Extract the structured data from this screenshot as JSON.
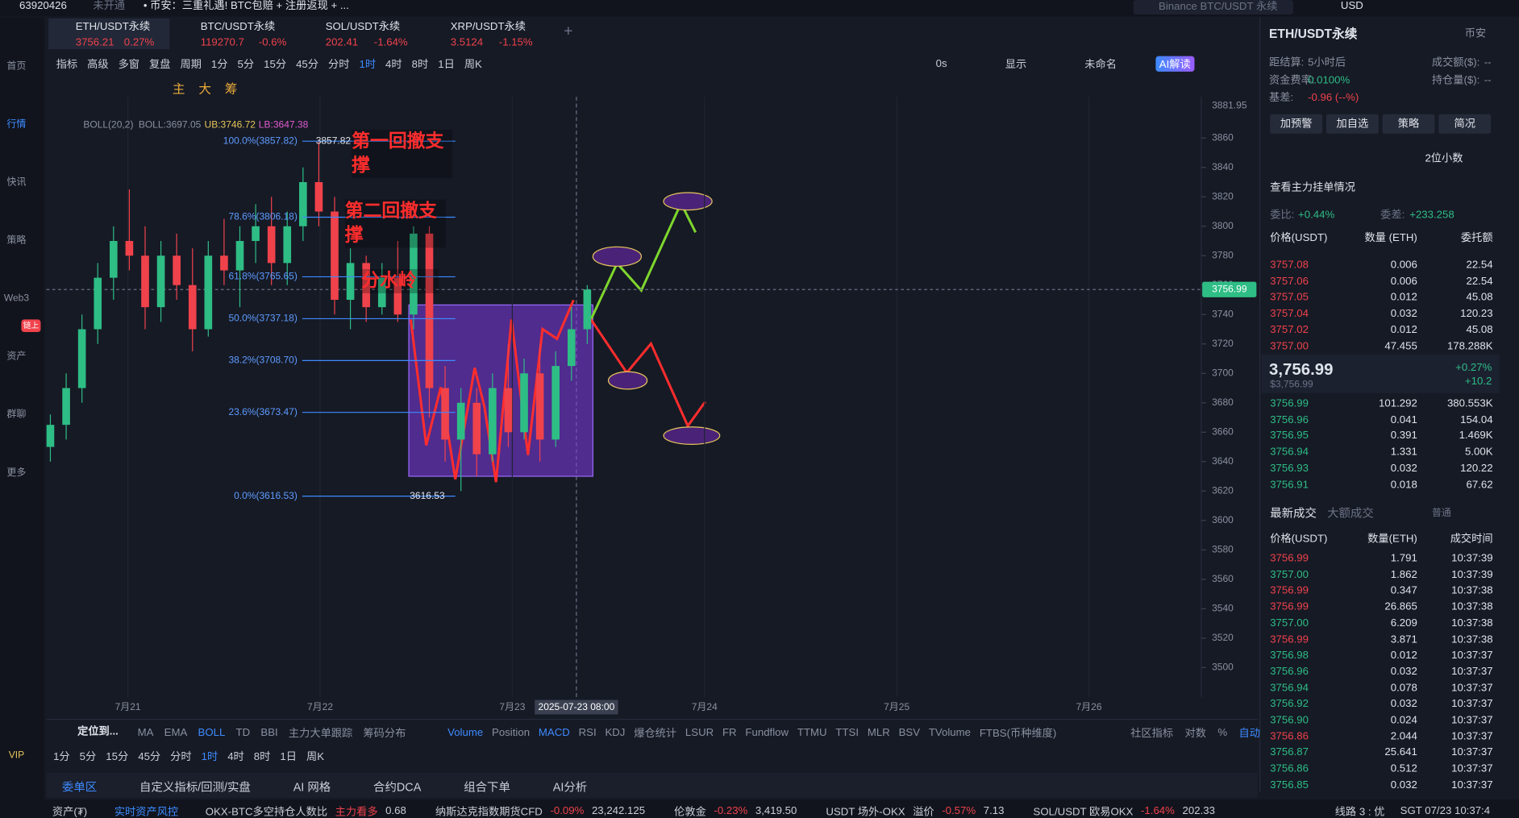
{
  "topbar": {
    "account": "63920426",
    "status": "未开通",
    "news": "• 币安：三重礼遇! BTC包赔 + 注册返现 + ...",
    "search": "Binance BTC/USDT 永续",
    "currency": "USD"
  },
  "tabs": [
    {
      "name": "ETH/USDT永续",
      "price": "3756.21",
      "change": "0.27%"
    },
    {
      "name": "BTC/USDT永续",
      "price": "119270.7",
      "change": "-0.6%"
    },
    {
      "name": "SOL/USDT永续",
      "price": "202.41",
      "change": "-1.64%"
    },
    {
      "name": "XRP/USDT永续",
      "price": "3.5124",
      "change": "-1.15%"
    }
  ],
  "sidebar": {
    "items": [
      "首页",
      "行情",
      "快讯",
      "策略",
      "Web3",
      "资产",
      "群聊",
      "更多"
    ],
    "badge": "链上",
    "vip": "VIP",
    "active": 1
  },
  "toolbar": {
    "items": [
      "指标",
      "高级",
      "多窗",
      "复盘",
      "周期",
      "1分",
      "5分",
      "15分",
      "45分",
      "分时",
      "1时",
      "4时",
      "8时",
      "1日",
      "周K"
    ],
    "active": 10,
    "right": [
      "0s",
      "显示",
      "未命名",
      "AI解读"
    ],
    "tools": [
      "主",
      "大",
      "筹"
    ]
  },
  "chart_data": {
    "type": "candlestick",
    "indicator": "BOLL(20,2)",
    "boll": "BOLL:3697.05",
    "ub": "UB:3746.72",
    "lb": "LB:3647.38",
    "categories": [
      "7月21",
      "7月22",
      "7月23",
      "7月24",
      "7月25",
      "7月26"
    ],
    "ylim": [
      3480,
      3888
    ],
    "yticks": [
      3500,
      3520,
      3540,
      3560,
      3580,
      3600,
      3620,
      3640,
      3660,
      3680,
      3700,
      3720,
      3740,
      3760,
      3780,
      3800,
      3820,
      3840,
      3860
    ],
    "top_label": {
      "value": 3881.95,
      "label": "3881.95"
    },
    "last_price": {
      "value": 3756.99,
      "label": "3756.99"
    },
    "crosshair": "2025-07-23 08:00",
    "up_color": "#2ebd85",
    "down_color": "#f0424b",
    "ohlc": [
      [
        3650,
        3672,
        3640,
        3665
      ],
      [
        3665,
        3700,
        3655,
        3690
      ],
      [
        3690,
        3740,
        3680,
        3730
      ],
      [
        3730,
        3775,
        3720,
        3765
      ],
      [
        3765,
        3800,
        3750,
        3790
      ],
      [
        3790,
        3825,
        3770,
        3780
      ],
      [
        3780,
        3800,
        3730,
        3745
      ],
      [
        3745,
        3790,
        3735,
        3780
      ],
      [
        3780,
        3795,
        3750,
        3760
      ],
      [
        3760,
        3785,
        3715,
        3730
      ],
      [
        3730,
        3790,
        3725,
        3780
      ],
      [
        3780,
        3805,
        3760,
        3770
      ],
      [
        3770,
        3800,
        3745,
        3790
      ],
      [
        3790,
        3815,
        3775,
        3800
      ],
      [
        3800,
        3820,
        3760,
        3775
      ],
      [
        3775,
        3810,
        3760,
        3800
      ],
      [
        3800,
        3840,
        3790,
        3830
      ],
      [
        3830,
        3858,
        3800,
        3810
      ],
      [
        3810,
        3820,
        3740,
        3750
      ],
      [
        3750,
        3785,
        3730,
        3775
      ],
      [
        3775,
        3780,
        3735,
        3745
      ],
      [
        3745,
        3775,
        3740,
        3765
      ],
      [
        3765,
        3790,
        3735,
        3740
      ],
      [
        3740,
        3800,
        3730,
        3795
      ],
      [
        3795,
        3800,
        3670,
        3690
      ],
      [
        3690,
        3705,
        3640,
        3655
      ],
      [
        3655,
        3690,
        3620,
        3680
      ],
      [
        3680,
        3690,
        3630,
        3645
      ],
      [
        3645,
        3700,
        3640,
        3690
      ],
      [
        3690,
        3720,
        3650,
        3660
      ],
      [
        3660,
        3710,
        3655,
        3700
      ],
      [
        3700,
        3720,
        3640,
        3655
      ],
      [
        3655,
        3715,
        3650,
        3705
      ],
      [
        3705,
        3745,
        3695,
        3730
      ],
      [
        3730,
        3760,
        3720,
        3757
      ]
    ],
    "fib": [
      {
        "value": 3857.82,
        "label": "100.0%(3857.82)"
      },
      {
        "value": 3806.18,
        "label": "78.6%(3806.18)"
      },
      {
        "value": 3765.65,
        "label": "61.8%(3765.65)"
      },
      {
        "value": 3737.18,
        "label": "50.0%(3737.18)"
      },
      {
        "value": 3708.7,
        "label": "38.2%(3708.70)"
      },
      {
        "value": 3673.47,
        "label": "23.6%(3673.47)"
      },
      {
        "value": 3616.53,
        "label": "0.0%(3616.53)"
      }
    ],
    "high": {
      "value": 3857.82,
      "label": "3857.82"
    },
    "low": {
      "value": 3616.53,
      "label": "3616.53"
    },
    "annotations": [
      "第一回撤支撑",
      "第二回撤支撑",
      "分水岭"
    ]
  },
  "indicators": {
    "locate": "定位到...",
    "main": [
      "MA",
      "EMA",
      "BOLL",
      "TD",
      "BBI",
      "主力大单跟踪",
      "筹码分布"
    ],
    "main_active": 2,
    "sub": [
      "Volume",
      "Position",
      "MACD",
      "RSI",
      "KDJ",
      "爆仓统计",
      "LSUR",
      "FR",
      "Fundflow",
      "TTMU",
      "TTSI",
      "MLR",
      "BSV",
      "TVolume",
      "FTBS(币种维度)"
    ],
    "sub_active": [
      0,
      2
    ],
    "right": [
      "社区指标",
      "对数",
      "%",
      "自动"
    ]
  },
  "periods": {
    "items": [
      "1分",
      "5分",
      "15分",
      "45分",
      "分时",
      "1时",
      "4时",
      "8时",
      "1日",
      "周K"
    ],
    "active": 5
  },
  "bottom_tabs": {
    "items": [
      "委单区",
      "自定义指标/回测/实盘",
      "AI 网格",
      "合约DCA",
      "组合下单",
      "AI分析"
    ],
    "active": 0
  },
  "status": {
    "items": [
      "资产(₮)",
      "实时资产风控",
      "OKX-BTC多空持仓人数比",
      "主力看多",
      "0.68",
      "纳斯达克指数期货CFD",
      "-0.09%",
      "23,242.125",
      "伦敦金",
      "-0.23%",
      "3,419.50",
      "USDT 场外-OKX",
      "溢价",
      "-0.57%",
      "7.13",
      "SOL/USDT 欧易OKX",
      "-1.64%",
      "202.33"
    ],
    "right": [
      "线路 3 : 优",
      "SGT 07/23 10:37:4"
    ]
  },
  "panel": {
    "title": "ETH/USDT永续",
    "exchange": "币安",
    "info": [
      [
        "距结算:",
        "5小时后"
      ],
      [
        "资金费率:",
        "0.0100%"
      ],
      [
        "基差:",
        "-0.96 (--%)"
      ],
      [
        "成交额($):",
        "--"
      ],
      [
        "持仓量($):",
        "--"
      ]
    ],
    "buttons": [
      "加预警",
      "加自选",
      "策略",
      "简况"
    ],
    "decimals": "2位小数",
    "whale": "查看主力挂单情况",
    "ratio": [
      "委比:",
      "+0.44%"
    ],
    "diff": [
      "委差:",
      "+233.258"
    ],
    "book_headers": [
      "价格(USDT)",
      "数量 (ETH)",
      "委托额"
    ],
    "asks": [
      [
        "3757.08",
        "0.006",
        "22.54"
      ],
      [
        "3757.06",
        "0.006",
        "22.54"
      ],
      [
        "3757.05",
        "0.012",
        "45.08"
      ],
      [
        "3757.04",
        "0.032",
        "120.23"
      ],
      [
        "3757.02",
        "0.012",
        "45.08"
      ],
      [
        "3757.00",
        "47.455",
        "178.288K"
      ]
    ],
    "mid": {
      "price": "3,756.99",
      "usd": "$3,756.99",
      "pct": "+0.27%",
      "chg": "+10.2"
    },
    "bids": [
      [
        "3756.99",
        "101.292",
        "380.553K"
      ],
      [
        "3756.96",
        "0.041",
        "154.04"
      ],
      [
        "3756.95",
        "0.391",
        "1.469K"
      ],
      [
        "3756.94",
        "1.331",
        "5.00K"
      ],
      [
        "3756.93",
        "0.032",
        "120.22"
      ],
      [
        "3756.91",
        "0.018",
        "67.62"
      ]
    ],
    "trade_tabs": [
      "最新成交",
      "大额成交",
      "普通"
    ],
    "trade_headers": [
      "价格(USDT)",
      "数量(ETH)",
      "成交时间"
    ],
    "trades": [
      {
        "price": "3756.99",
        "qty": "1.791",
        "time": "10:37:39",
        "color": "#f0424b"
      },
      {
        "price": "3757.00",
        "qty": "1.862",
        "time": "10:37:39",
        "color": "#2ebd85"
      },
      {
        "price": "3756.99",
        "qty": "0.347",
        "time": "10:37:38",
        "color": "#f0424b"
      },
      {
        "price": "3756.99",
        "qty": "26.865",
        "time": "10:37:38",
        "color": "#f0424b"
      },
      {
        "price": "3757.00",
        "qty": "6.209",
        "time": "10:37:38",
        "color": "#2ebd85"
      },
      {
        "price": "3756.99",
        "qty": "3.871",
        "time": "10:37:38",
        "color": "#f0424b"
      },
      {
        "price": "3756.98",
        "qty": "0.012",
        "time": "10:37:37",
        "color": "#2ebd85"
      },
      {
        "price": "3756.96",
        "qty": "0.032",
        "time": "10:37:37",
        "color": "#2ebd85"
      },
      {
        "price": "3756.94",
        "qty": "0.078",
        "time": "10:37:37",
        "color": "#2ebd85"
      },
      {
        "price": "3756.92",
        "qty": "0.032",
        "time": "10:37:37",
        "color": "#2ebd85"
      },
      {
        "price": "3756.90",
        "qty": "0.024",
        "time": "10:37:37",
        "color": "#2ebd85"
      },
      {
        "price": "3756.86",
        "qty": "2.044",
        "time": "10:37:37",
        "color": "#f0424b"
      },
      {
        "price": "3756.87",
        "qty": "25.641",
        "time": "10:37:37",
        "color": "#2ebd85"
      },
      {
        "price": "3756.86",
        "qty": "0.512",
        "time": "10:37:37",
        "color": "#2ebd85"
      },
      {
        "price": "3756.85",
        "qty": "0.032",
        "time": "10:37:37",
        "color": "#2ebd85"
      }
    ]
  }
}
